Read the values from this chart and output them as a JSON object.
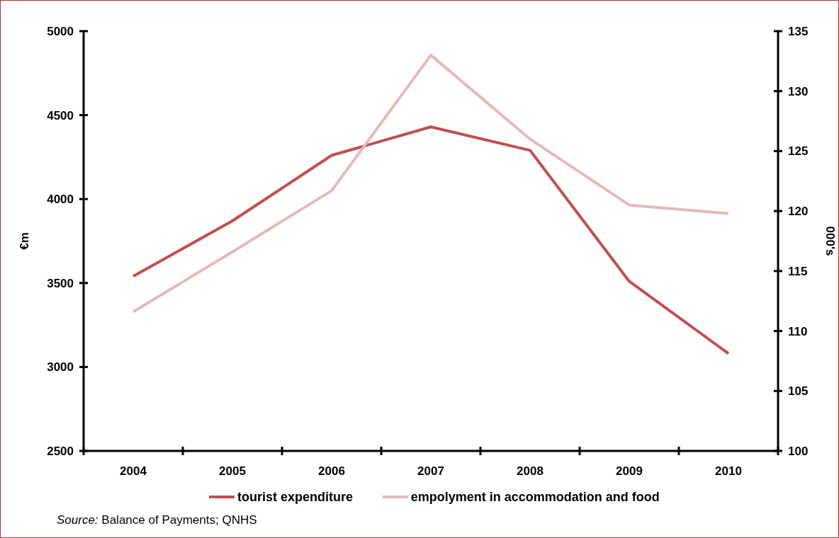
{
  "chart_data": {
    "type": "line",
    "categories": [
      "2004",
      "2005",
      "2006",
      "2007",
      "2008",
      "2009",
      "2010"
    ],
    "series": [
      {
        "name": "tourist expenditure",
        "color": "#c0504d",
        "values": [
          3540,
          3870,
          4260,
          4430,
          4290,
          3510,
          3080
        ]
      },
      {
        "name": "empolyment in accommodation and food",
        "color": "#e6b9b8",
        "axis": "y2",
        "values": [
          111.6,
          116.6,
          121.7,
          133.0,
          126.0,
          120.5,
          119.8
        ]
      }
    ],
    "ylim": [
      2500,
      5000
    ],
    "yticks": [
      2500,
      3000,
      3500,
      4000,
      4500,
      5000
    ],
    "y2lim": [
      100,
      135
    ],
    "y2ticks": [
      100,
      105,
      110,
      115,
      120,
      125,
      130,
      135
    ],
    "ylabel": "€m",
    "y2label": "000's",
    "grid": false,
    "legend": "bottom",
    "line_style": "solid",
    "annotations": [
      "Source: Balance of Payments; QNHS"
    ]
  }
}
